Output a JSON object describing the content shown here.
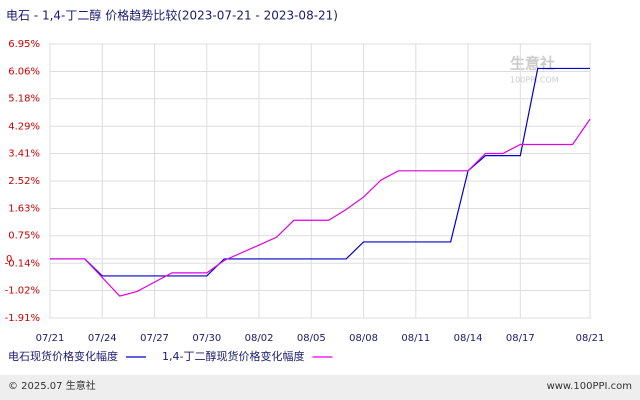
{
  "chart_data": {
    "type": "line",
    "title": "电石 - 1,4-丁二醇 价格趋势比较(2023-07-21 - 2023-08-21)",
    "categories": [
      "07/21",
      null,
      null,
      "07/24",
      null,
      null,
      "07/27",
      null,
      null,
      "07/30",
      null,
      null,
      "08/02",
      null,
      null,
      "08/05",
      null,
      null,
      "08/08",
      null,
      null,
      "08/11",
      null,
      null,
      "08/14",
      null,
      null,
      "08/17",
      null,
      null,
      null,
      "08/21"
    ],
    "series": [
      {
        "name": "电石现货价格变化幅度",
        "color": "#0000cc",
        "values": [
          0,
          0,
          0,
          -0.55,
          -0.55,
          -0.55,
          -0.55,
          -0.55,
          -0.55,
          -0.55,
          0,
          0,
          0,
          0,
          0,
          0,
          0,
          0,
          0.55,
          0.55,
          0.55,
          0.55,
          0.55,
          0.55,
          2.85,
          3.34,
          3.34,
          3.34,
          6.16,
          6.16,
          6.16,
          6.16
        ]
      },
      {
        "name": "1,4-丁二醇现货价格变化幅度",
        "color": "#e000e0",
        "values": [
          0,
          0,
          0,
          -0.6,
          -1.2,
          -1.05,
          -0.75,
          -0.45,
          -0.45,
          -0.45,
          -0.05,
          0.2,
          0.45,
          0.7,
          1.25,
          1.25,
          1.25,
          1.6,
          2.0,
          2.55,
          2.85,
          2.85,
          2.85,
          2.85,
          2.85,
          3.41,
          3.41,
          3.7,
          3.7,
          3.7,
          3.7,
          4.52
        ]
      }
    ],
    "ylim": [
      -1.91,
      6.95
    ],
    "yticks": [
      {
        "value": 6.95,
        "label": "6.95%"
      },
      {
        "value": 6.06,
        "label": "6.06%"
      },
      {
        "value": 5.18,
        "label": "5.18%"
      },
      {
        "value": 4.29,
        "label": "4.29%"
      },
      {
        "value": 3.41,
        "label": "3.41%"
      },
      {
        "value": 2.52,
        "label": "2.52%"
      },
      {
        "value": 1.63,
        "label": "1.63%"
      },
      {
        "value": 0.75,
        "label": "0.75%"
      },
      0,
      {
        "value": -0.14,
        "label": "-0.14%"
      },
      {
        "value": -1.02,
        "label": "-1.02%"
      },
      {
        "value": -1.91,
        "label": "-1.91%"
      }
    ],
    "grid": true,
    "watermark": {
      "name": "生意社",
      "url": "100PPI.COM"
    },
    "footer": {
      "left": "© 2025.07 生意社",
      "right": "www.100PPI.com"
    }
  }
}
